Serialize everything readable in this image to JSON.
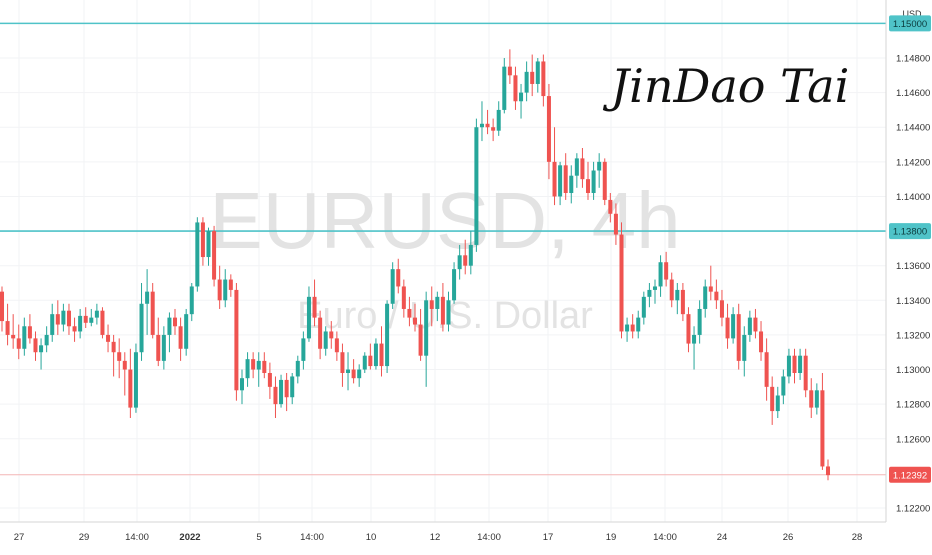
{
  "chart_data": {
    "type": "candlestick",
    "symbol": "EURUSD, 4h",
    "description": "Euro / U.S. Dollar",
    "currency": "USD",
    "signature": "JinDao Tai",
    "y_axis_ticks": [
      1.148,
      1.146,
      1.144,
      1.142,
      1.14,
      1.138,
      1.136,
      1.134,
      1.132,
      1.13,
      1.128,
      1.126,
      1.122
    ],
    "y_axis_labels": [
      "1.14800",
      "1.14600",
      "1.14400",
      "1.14200",
      "1.14000",
      "1.13800",
      "1.13600",
      "1.13400",
      "1.13200",
      "1.13000",
      "1.12800",
      "1.12600",
      "1.12200"
    ],
    "x_axis_labels": [
      {
        "label": "27",
        "bold": false
      },
      {
        "label": "29",
        "bold": false
      },
      {
        "label": "14:00",
        "bold": false
      },
      {
        "label": "2022",
        "bold": true
      },
      {
        "label": "5",
        "bold": false
      },
      {
        "label": "14:00",
        "bold": false
      },
      {
        "label": "10",
        "bold": false
      },
      {
        "label": "12",
        "bold": false
      },
      {
        "label": "14:00",
        "bold": false
      },
      {
        "label": "17",
        "bold": false
      },
      {
        "label": "19",
        "bold": false
      },
      {
        "label": "14:00",
        "bold": false
      },
      {
        "label": "24",
        "bold": false
      },
      {
        "label": "26",
        "bold": false
      },
      {
        "label": "28",
        "bold": false
      }
    ],
    "horizontal_lines": [
      {
        "value": 1.15,
        "label": "1.15000",
        "color": "#4fc3c8"
      },
      {
        "value": 1.138,
        "label": "1.13800",
        "color": "#4fc3c8"
      }
    ],
    "last_price": {
      "value": 1.12392,
      "label": "1.12392",
      "color": "#ef5350"
    },
    "up_color": "#26a69a",
    "down_color": "#ef5350",
    "candles": [
      [
        1.1345,
        1.1348,
        1.1322,
        1.1328
      ],
      [
        1.1328,
        1.1338,
        1.1314,
        1.132
      ],
      [
        1.132,
        1.1332,
        1.1312,
        1.1318
      ],
      [
        1.1318,
        1.1326,
        1.1306,
        1.1312
      ],
      [
        1.1312,
        1.133,
        1.1308,
        1.1325
      ],
      [
        1.1325,
        1.1332,
        1.1315,
        1.1318
      ],
      [
        1.1318,
        1.1322,
        1.1305,
        1.131
      ],
      [
        1.131,
        1.1318,
        1.13,
        1.1314
      ],
      [
        1.1314,
        1.1325,
        1.131,
        1.132
      ],
      [
        1.132,
        1.1338,
        1.1316,
        1.1332
      ],
      [
        1.1332,
        1.134,
        1.132,
        1.1326
      ],
      [
        1.1326,
        1.1338,
        1.1322,
        1.1334
      ],
      [
        1.1334,
        1.1338,
        1.132,
        1.1325
      ],
      [
        1.1325,
        1.133,
        1.1316,
        1.1322
      ],
      [
        1.1322,
        1.1335,
        1.1318,
        1.1331
      ],
      [
        1.1331,
        1.1336,
        1.1324,
        1.1327
      ],
      [
        1.1327,
        1.1335,
        1.1325,
        1.133
      ],
      [
        1.133,
        1.1338,
        1.1326,
        1.1334
      ],
      [
        1.1334,
        1.1336,
        1.1318,
        1.132
      ],
      [
        1.132,
        1.1326,
        1.131,
        1.1316
      ],
      [
        1.1316,
        1.132,
        1.1296,
        1.131
      ],
      [
        1.131,
        1.1318,
        1.1295,
        1.1305
      ],
      [
        1.1305,
        1.131,
        1.1285,
        1.13
      ],
      [
        1.13,
        1.1312,
        1.1272,
        1.1278
      ],
      [
        1.1278,
        1.1315,
        1.1275,
        1.131
      ],
      [
        1.131,
        1.135,
        1.1305,
        1.1338
      ],
      [
        1.1338,
        1.1358,
        1.132,
        1.1345
      ],
      [
        1.1345,
        1.135,
        1.1318,
        1.132
      ],
      [
        1.132,
        1.133,
        1.1302,
        1.1305
      ],
      [
        1.1305,
        1.1325,
        1.13,
        1.132
      ],
      [
        1.132,
        1.1333,
        1.131,
        1.133
      ],
      [
        1.133,
        1.1335,
        1.132,
        1.1325
      ],
      [
        1.1325,
        1.133,
        1.1305,
        1.1312
      ],
      [
        1.1312,
        1.1335,
        1.1308,
        1.1332
      ],
      [
        1.1332,
        1.135,
        1.1328,
        1.1348
      ],
      [
        1.1348,
        1.1388,
        1.1345,
        1.1385
      ],
      [
        1.1385,
        1.1388,
        1.136,
        1.1365
      ],
      [
        1.1365,
        1.1382,
        1.136,
        1.138
      ],
      [
        1.138,
        1.1383,
        1.1348,
        1.1352
      ],
      [
        1.1352,
        1.136,
        1.1335,
        1.134
      ],
      [
        1.134,
        1.1358,
        1.1336,
        1.1352
      ],
      [
        1.1352,
        1.1355,
        1.1342,
        1.1346
      ],
      [
        1.1346,
        1.135,
        1.1282,
        1.1288
      ],
      [
        1.1288,
        1.13,
        1.128,
        1.1295
      ],
      [
        1.1295,
        1.131,
        1.129,
        1.1306
      ],
      [
        1.1306,
        1.131,
        1.1295,
        1.13
      ],
      [
        1.13,
        1.131,
        1.129,
        1.1305
      ],
      [
        1.1305,
        1.131,
        1.1295,
        1.1298
      ],
      [
        1.1298,
        1.1304,
        1.1283,
        1.129
      ],
      [
        1.129,
        1.1296,
        1.1272,
        1.128
      ],
      [
        1.128,
        1.1297,
        1.1278,
        1.1294
      ],
      [
        1.1294,
        1.1298,
        1.1276,
        1.1284
      ],
      [
        1.1284,
        1.1298,
        1.128,
        1.1296
      ],
      [
        1.1296,
        1.1308,
        1.1292,
        1.1305
      ],
      [
        1.1305,
        1.1322,
        1.13,
        1.1318
      ],
      [
        1.1318,
        1.1348,
        1.1316,
        1.1342
      ],
      [
        1.1342,
        1.1352,
        1.1325,
        1.133
      ],
      [
        1.133,
        1.1334,
        1.1306,
        1.1312
      ],
      [
        1.1312,
        1.1325,
        1.1308,
        1.1322
      ],
      [
        1.1322,
        1.1328,
        1.1312,
        1.1318
      ],
      [
        1.1318,
        1.1322,
        1.1305,
        1.131
      ],
      [
        1.131,
        1.1315,
        1.129,
        1.1298
      ],
      [
        1.1298,
        1.131,
        1.1288,
        1.13
      ],
      [
        1.13,
        1.1306,
        1.1292,
        1.1295
      ],
      [
        1.1295,
        1.1303,
        1.129,
        1.13
      ],
      [
        1.13,
        1.131,
        1.1298,
        1.1308
      ],
      [
        1.1308,
        1.1315,
        1.13,
        1.1302
      ],
      [
        1.1302,
        1.1318,
        1.13,
        1.1315
      ],
      [
        1.1315,
        1.1325,
        1.1296,
        1.1302
      ],
      [
        1.1302,
        1.134,
        1.1298,
        1.1338
      ],
      [
        1.1338,
        1.1362,
        1.1335,
        1.1358
      ],
      [
        1.1358,
        1.1364,
        1.1344,
        1.1348
      ],
      [
        1.1348,
        1.1352,
        1.133,
        1.1335
      ],
      [
        1.1335,
        1.1342,
        1.1325,
        1.133
      ],
      [
        1.133,
        1.1338,
        1.1322,
        1.1326
      ],
      [
        1.1326,
        1.1335,
        1.1305,
        1.1308
      ],
      [
        1.1308,
        1.1345,
        1.129,
        1.134
      ],
      [
        1.134,
        1.1348,
        1.1325,
        1.1335
      ],
      [
        1.1335,
        1.1345,
        1.1328,
        1.1342
      ],
      [
        1.1342,
        1.135,
        1.1322,
        1.1326
      ],
      [
        1.1326,
        1.1345,
        1.1322,
        1.134
      ],
      [
        1.134,
        1.1362,
        1.1338,
        1.1358
      ],
      [
        1.1358,
        1.1372,
        1.1352,
        1.1366
      ],
      [
        1.1366,
        1.1375,
        1.1355,
        1.136
      ],
      [
        1.136,
        1.138,
        1.1355,
        1.1372
      ],
      [
        1.1372,
        1.1445,
        1.1368,
        1.144
      ],
      [
        1.144,
        1.1455,
        1.1432,
        1.1442
      ],
      [
        1.1442,
        1.145,
        1.1436,
        1.144
      ],
      [
        1.144,
        1.1445,
        1.1432,
        1.1438
      ],
      [
        1.1438,
        1.1455,
        1.1435,
        1.145
      ],
      [
        1.145,
        1.148,
        1.1448,
        1.1475
      ],
      [
        1.1475,
        1.1485,
        1.1465,
        1.147
      ],
      [
        1.147,
        1.1475,
        1.145,
        1.1455
      ],
      [
        1.1455,
        1.1465,
        1.1445,
        1.146
      ],
      [
        1.146,
        1.1478,
        1.1455,
        1.1472
      ],
      [
        1.1472,
        1.1482,
        1.1458,
        1.1465
      ],
      [
        1.1465,
        1.148,
        1.146,
        1.1478
      ],
      [
        1.1478,
        1.1482,
        1.1452,
        1.1458
      ],
      [
        1.1458,
        1.1465,
        1.141,
        1.142
      ],
      [
        1.142,
        1.144,
        1.1395,
        1.14
      ],
      [
        1.14,
        1.142,
        1.1395,
        1.1418
      ],
      [
        1.1418,
        1.1425,
        1.1398,
        1.1402
      ],
      [
        1.1402,
        1.1418,
        1.1396,
        1.1412
      ],
      [
        1.1412,
        1.1425,
        1.1405,
        1.1422
      ],
      [
        1.1422,
        1.1428,
        1.1405,
        1.141
      ],
      [
        1.141,
        1.142,
        1.1398,
        1.1402
      ],
      [
        1.1402,
        1.142,
        1.1398,
        1.1415
      ],
      [
        1.1415,
        1.1425,
        1.1405,
        1.142
      ],
      [
        1.142,
        1.1422,
        1.1395,
        1.1398
      ],
      [
        1.1398,
        1.1402,
        1.1385,
        1.139
      ],
      [
        1.139,
        1.1396,
        1.1372,
        1.1378
      ],
      [
        1.1378,
        1.1385,
        1.1318,
        1.1322
      ],
      [
        1.1322,
        1.133,
        1.1316,
        1.1326
      ],
      [
        1.1326,
        1.1332,
        1.1318,
        1.1322
      ],
      [
        1.1322,
        1.1334,
        1.1318,
        1.133
      ],
      [
        1.133,
        1.1345,
        1.1326,
        1.1342
      ],
      [
        1.1342,
        1.135,
        1.1336,
        1.1346
      ],
      [
        1.1346,
        1.1352,
        1.1338,
        1.1348
      ],
      [
        1.1348,
        1.1366,
        1.1342,
        1.1362
      ],
      [
        1.1362,
        1.1368,
        1.1348,
        1.1352
      ],
      [
        1.1352,
        1.1356,
        1.1336,
        1.134
      ],
      [
        1.134,
        1.135,
        1.1332,
        1.1346
      ],
      [
        1.1346,
        1.135,
        1.1328,
        1.1332
      ],
      [
        1.1332,
        1.1336,
        1.131,
        1.1315
      ],
      [
        1.1315,
        1.1325,
        1.13,
        1.132
      ],
      [
        1.132,
        1.134,
        1.1315,
        1.1335
      ],
      [
        1.1335,
        1.1352,
        1.133,
        1.1348
      ],
      [
        1.1348,
        1.136,
        1.134,
        1.1345
      ],
      [
        1.1345,
        1.1352,
        1.1335,
        1.134
      ],
      [
        1.134,
        1.1346,
        1.1325,
        1.133
      ],
      [
        1.133,
        1.1338,
        1.1312,
        1.1318
      ],
      [
        1.1318,
        1.1336,
        1.1315,
        1.1332
      ],
      [
        1.1332,
        1.1338,
        1.13,
        1.1305
      ],
      [
        1.1305,
        1.1325,
        1.1296,
        1.132
      ],
      [
        1.132,
        1.1334,
        1.1316,
        1.133
      ],
      [
        1.133,
        1.1335,
        1.1318,
        1.1322
      ],
      [
        1.1322,
        1.1328,
        1.1305,
        1.131
      ],
      [
        1.131,
        1.1318,
        1.1282,
        1.129
      ],
      [
        1.129,
        1.1296,
        1.1268,
        1.1276
      ],
      [
        1.1276,
        1.129,
        1.1272,
        1.1285
      ],
      [
        1.1285,
        1.13,
        1.128,
        1.1296
      ],
      [
        1.1296,
        1.1312,
        1.1292,
        1.1308
      ],
      [
        1.1308,
        1.1312,
        1.1292,
        1.1298
      ],
      [
        1.1298,
        1.1312,
        1.1294,
        1.1308
      ],
      [
        1.1308,
        1.1312,
        1.1284,
        1.1288
      ],
      [
        1.1288,
        1.1295,
        1.1272,
        1.1278
      ],
      [
        1.1278,
        1.1292,
        1.1274,
        1.1288
      ],
      [
        1.1288,
        1.1298,
        1.1242,
        1.1244
      ],
      [
        1.1244,
        1.1248,
        1.1236,
        1.1239
      ]
    ]
  }
}
